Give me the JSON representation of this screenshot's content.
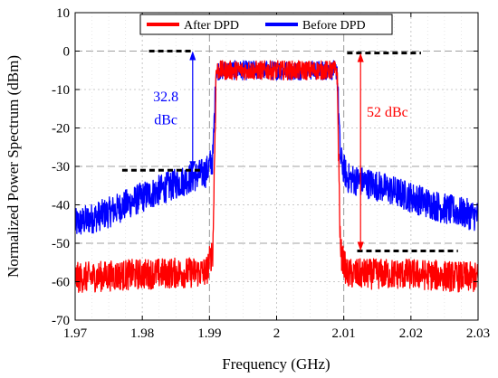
{
  "chart_data": {
    "type": "line",
    "title": "",
    "xlabel": "Frequency (GHz)",
    "ylabel": "Normalized Power Spectrum (dBm)",
    "xlim": [
      1.97,
      2.03
    ],
    "ylim": [
      -70,
      10
    ],
    "xticks": [
      1.97,
      1.98,
      1.99,
      2,
      2.01,
      2.02,
      2.03
    ],
    "xtick_labels": [
      "1.97",
      "1.98",
      "1.99",
      "2",
      "2.01",
      "2.02",
      "2.03"
    ],
    "yticks": [
      10,
      0,
      -10,
      -20,
      -30,
      -40,
      -50,
      -60,
      -70
    ],
    "ytick_labels": [
      "10",
      "0",
      "-10",
      "-20",
      "-30",
      "-40",
      "-50",
      "-60",
      "-70"
    ],
    "grid": "on",
    "legend_position": "top",
    "colors": {
      "after": "#ff0000",
      "before": "#0000ff",
      "reference": "#000000"
    },
    "series": [
      {
        "name": "Before DPD",
        "color": "#0000ff",
        "x": [
          1.97,
          1.975,
          1.98,
          1.985,
          1.9895,
          1.9905,
          1.991,
          2.0,
          2.009,
          2.0095,
          2.0105,
          2.015,
          2.02,
          2.025,
          2.03
        ],
        "y": [
          -45,
          -42,
          -38,
          -34.5,
          -31.5,
          -28,
          -5,
          -5,
          -5,
          -28,
          -33,
          -35,
          -38,
          -41,
          -43
        ]
      },
      {
        "name": "After DPD",
        "color": "#ff0000",
        "x": [
          1.97,
          1.98,
          1.9895,
          1.9905,
          1.991,
          2.0,
          2.009,
          2.0095,
          2.0105,
          2.02,
          2.03
        ],
        "y": [
          -59,
          -58,
          -57.5,
          -52,
          -5,
          -5,
          -5,
          -52,
          -58,
          -58,
          -59
        ]
      }
    ],
    "reference_lines": [
      {
        "x": [
          1.977,
          1.989
        ],
        "y": -31
      },
      {
        "x": [
          1.981,
          1.9875
        ],
        "y": 0
      },
      {
        "x": [
          2.0105,
          2.0215
        ],
        "y": -0.5
      },
      {
        "x": [
          2.012,
          2.027
        ],
        "y": -52
      }
    ],
    "annotations": [
      {
        "text": "32.8",
        "x": 1.9835,
        "y": -13,
        "color": "#0000ff"
      },
      {
        "text": "dBc",
        "x": 1.9835,
        "y": -19,
        "color": "#0000ff"
      },
      {
        "text": "52 dBc",
        "x": 2.0165,
        "y": -17,
        "color": "#ff0000"
      }
    ],
    "arrows": [
      {
        "x": 1.9875,
        "y_from": -31,
        "y_to": 0,
        "color": "#0000ff"
      },
      {
        "x": 2.0125,
        "y_from": -52,
        "y_to": -0.5,
        "color": "#ff0000"
      }
    ]
  }
}
